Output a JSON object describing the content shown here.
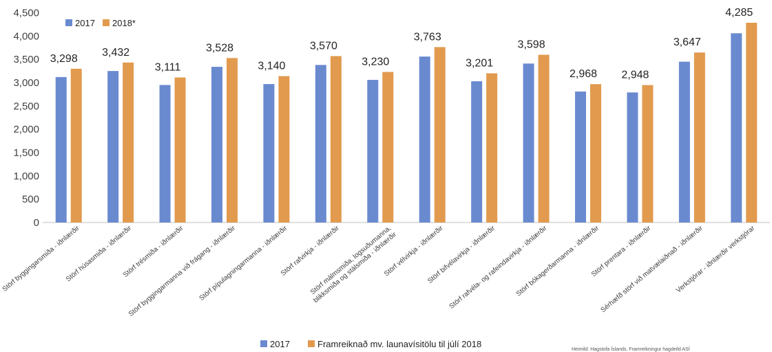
{
  "chart_data": {
    "type": "bar",
    "categories": [
      "Störf byggingarsmiða - iðnlærðir",
      "Störf húsasmiða - iðnlærðir",
      "Störf trésmiða - iðnlærðir",
      "Störf byggingarmanna við frágang - iðnlærðir",
      "Störf pípulagningarmanna - iðnlærðir",
      "Störf rafvirkja - iðnlærðir",
      "Störf málmsmiða, logsuðumanna, blikksmiða og stálsmiða - iðnlærðir",
      "Störf vélvirkja - iðnlærðir",
      "Störf bifvélavirkja - iðnlærðir",
      "Störf rafvéla- og rafeindavirkja - iðnlærðir",
      "Störf bókagerðarmanna - iðnlærðir",
      "Störf prentara - iðnlærðir",
      "Sérhæfð störf við matvælaiðnað - iðnlærðir",
      "Verkstjórar - iðnlærðir verkstjórar"
    ],
    "series": [
      {
        "name": "2017",
        "color": "#6a8ad0",
        "values": [
          3120,
          3250,
          2950,
          3340,
          2970,
          3380,
          3060,
          3560,
          3030,
          3410,
          2810,
          2790,
          3450,
          4060
        ]
      },
      {
        "name": "2018*",
        "color": "#e29a4e",
        "values": [
          3298,
          3432,
          3111,
          3528,
          3140,
          3570,
          3230,
          3763,
          3201,
          3598,
          2968,
          2948,
          3647,
          4285
        ]
      }
    ],
    "data_labels": [
      "3,298",
      "3,432",
      "3,111",
      "3,528",
      "3,140",
      "3,570",
      "3,230",
      "3,763",
      "3,201",
      "3,598",
      "2,968",
      "2,948",
      "3,647",
      "4,285"
    ],
    "y_ticks": [
      "0",
      "500",
      "1,000",
      "1,500",
      "2,000",
      "2,500",
      "3,000",
      "3,500",
      "4,000",
      "4,500"
    ],
    "ylim": [
      0,
      4500
    ],
    "title": "",
    "xlabel": "",
    "ylabel": "",
    "grid": false,
    "legend_top": {
      "placement": "top-left",
      "items": [
        "2017",
        "2018*"
      ]
    },
    "legend_bottom": {
      "placement": "bottom-center",
      "items": [
        "2017",
        "Framreiknað mv. launavísitölu til júlí 2018"
      ]
    },
    "source_note": "Heimild: Hagstofa Íslands, Framreikningur hagdeild ASÍ"
  }
}
